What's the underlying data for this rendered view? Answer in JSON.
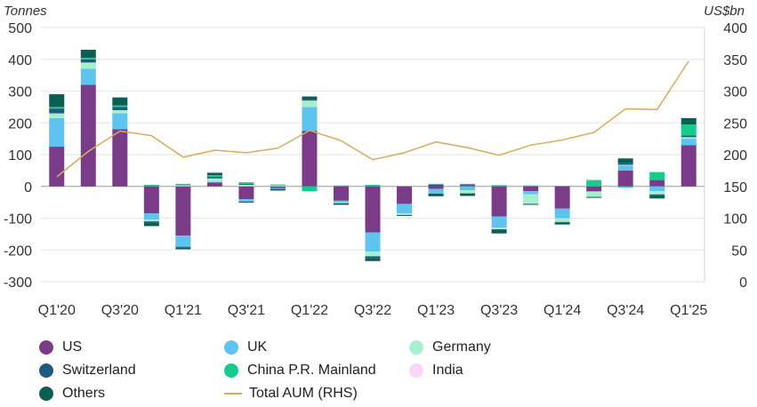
{
  "chart_data": {
    "type": "stacked-bar-with-line",
    "left_axis_label": "Tonnes",
    "right_axis_label": "US$bn",
    "ylim": [
      -300,
      500
    ],
    "y_ticks": [
      -300,
      -200,
      -100,
      0,
      100,
      200,
      300,
      400,
      500
    ],
    "y2lim": [
      0,
      400
    ],
    "y2_ticks": [
      0,
      50,
      100,
      150,
      200,
      250,
      300,
      350,
      400
    ],
    "categories": [
      "Q1'20",
      "Q2'20",
      "Q3'20",
      "Q4'20",
      "Q1'21",
      "Q2'21",
      "Q3'21",
      "Q4'21",
      "Q1'22",
      "Q2'22",
      "Q3'22",
      "Q4'22",
      "Q1'23",
      "Q2'23",
      "Q3'23",
      "Q4'23",
      "Q1'24",
      "Q2'24",
      "Q3'24",
      "Q4'24",
      "Q1'25"
    ],
    "x_tick_labels": [
      "Q1'20",
      "Q3'20",
      "Q1'21",
      "Q3'21",
      "Q1'22",
      "Q3'22",
      "Q1'23",
      "Q3'23",
      "Q1'24",
      "Q3'24",
      "Q1'25"
    ],
    "series": [
      {
        "name": "US",
        "color": "#7a3c88",
        "values": [
          125,
          320,
          180,
          -85,
          -155,
          12,
          -40,
          -5,
          175,
          -45,
          -145,
          -55,
          -8,
          3,
          -95,
          -15,
          -70,
          -15,
          50,
          20,
          130
        ]
      },
      {
        "name": "UK",
        "color": "#5ec3ef",
        "values": [
          90,
          50,
          50,
          -20,
          -35,
          3,
          -8,
          -3,
          75,
          -5,
          -60,
          -30,
          -15,
          -12,
          -35,
          -10,
          -30,
          -3,
          15,
          -15,
          20
        ]
      },
      {
        "name": "Germany",
        "color": "#a8efce",
        "values": [
          15,
          20,
          10,
          -5,
          3,
          10,
          5,
          3,
          20,
          -3,
          -15,
          -5,
          0,
          -10,
          -5,
          -30,
          -12,
          -15,
          3,
          -10,
          5
        ]
      },
      {
        "name": "Switzerland",
        "color": "#1f5a80",
        "values": [
          15,
          10,
          10,
          -5,
          -3,
          5,
          3,
          0,
          3,
          0,
          -5,
          -3,
          5,
          3,
          -3,
          -3,
          -3,
          0,
          5,
          -3,
          5
        ]
      },
      {
        "name": "China P.R. Mainland",
        "color": "#14cc8c",
        "values": [
          5,
          5,
          5,
          5,
          5,
          5,
          5,
          3,
          -15,
          3,
          5,
          0,
          3,
          2,
          4,
          3,
          2,
          20,
          -3,
          25,
          35
        ]
      },
      {
        "name": "India",
        "color": "#f9d6f5",
        "values": [
          0,
          0,
          0,
          0,
          0,
          0,
          0,
          0,
          0,
          0,
          0,
          0,
          0,
          0,
          0,
          0,
          0,
          0,
          0,
          0,
          0
        ]
      },
      {
        "name": "Others",
        "color": "#0b5e52",
        "values": [
          40,
          25,
          25,
          -10,
          -5,
          8,
          -3,
          -5,
          10,
          -5,
          -10,
          0,
          -8,
          -8,
          -10,
          0,
          -5,
          -3,
          15,
          -10,
          20
        ]
      }
    ],
    "line": {
      "name": "Total AUM (RHS)",
      "color": "#d6ad5b",
      "values": [
        165,
        205,
        237,
        230,
        196,
        207,
        203,
        210,
        238,
        222,
        192,
        203,
        220,
        211,
        199,
        215,
        223,
        235,
        272,
        271,
        347
      ]
    }
  }
}
